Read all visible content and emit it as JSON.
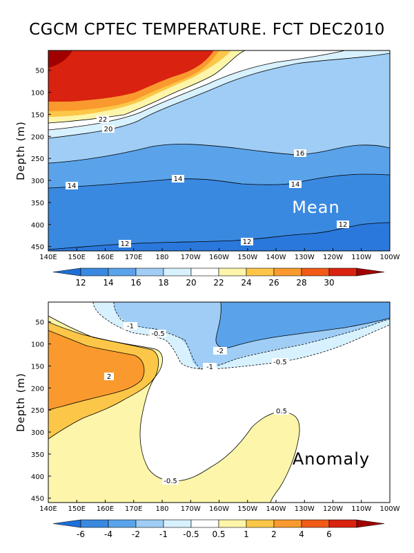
{
  "title": "CGCM CPTEC TEMPERATURE. FCT DEC2010",
  "chart_data": [
    {
      "type": "heatmap",
      "panel_label": "Mean",
      "ylabel": "Depth (m)",
      "x_ticks": [
        "140E",
        "150E",
        "160E",
        "170E",
        "180",
        "170W",
        "160W",
        "150W",
        "140W",
        "130W",
        "120W",
        "110W",
        "100W"
      ],
      "y_ticks": [
        50,
        100,
        150,
        200,
        250,
        300,
        350,
        400,
        450
      ],
      "xlim": [
        "140E",
        "100W"
      ],
      "ylim": [
        460,
        5
      ],
      "colorbar": {
        "levels": [
          "12",
          "14",
          "16",
          "18",
          "20",
          "22",
          "24",
          "26",
          "28",
          "30"
        ],
        "colors": [
          "#1f6fd8",
          "#3a89e0",
          "#5aa3ea",
          "#9fcdf5",
          "#d8f1ff",
          "#ffffff",
          "#fdf5a9",
          "#fcc748",
          "#fa9a2e",
          "#f15b17",
          "#d9220f",
          "#a10000"
        ]
      },
      "contour_labels": [
        "22",
        "20",
        "16",
        "14",
        "14",
        "14",
        "12",
        "12",
        "12"
      ]
    },
    {
      "type": "heatmap",
      "panel_label": "Anomaly",
      "ylabel": "Depth (m)",
      "x_ticks": [
        "140E",
        "150E",
        "160E",
        "170E",
        "180",
        "170W",
        "160W",
        "150W",
        "140W",
        "130W",
        "120W",
        "110W",
        "100W"
      ],
      "y_ticks": [
        50,
        100,
        150,
        200,
        250,
        300,
        350,
        400,
        450
      ],
      "xlim": [
        "140E",
        "100W"
      ],
      "ylim": [
        460,
        5
      ],
      "colorbar": {
        "levels": [
          "-6",
          "-4",
          "-2",
          "-1",
          "-0.5",
          "0.5",
          "1",
          "2",
          "4",
          "6"
        ],
        "colors": [
          "#1f6fd8",
          "#3a89e0",
          "#5aa3ea",
          "#9fcdf5",
          "#d8f1ff",
          "#ffffff",
          "#fdf5a9",
          "#fcc748",
          "#fa9a2e",
          "#f15b17",
          "#d9220f",
          "#a10000"
        ]
      },
      "contour_labels": [
        "-1",
        "-0.5",
        "-2",
        "-1",
        "-0.5",
        "2",
        "0.5",
        "-0.5"
      ]
    }
  ]
}
